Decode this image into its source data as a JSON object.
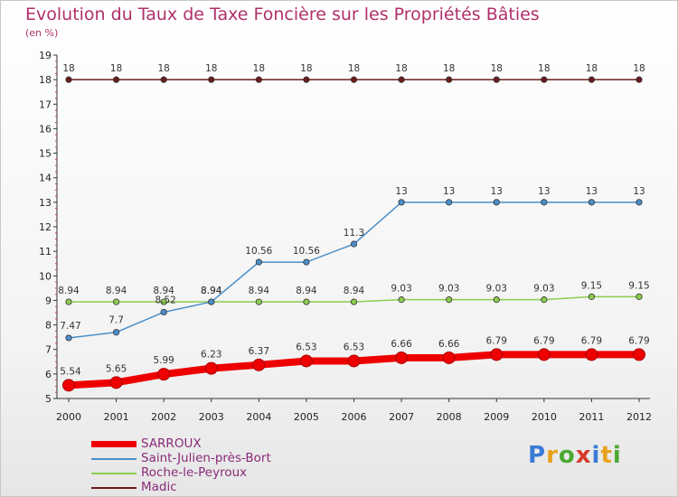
{
  "title": "Evolution du Taux de Taxe Foncière sur les Propriétés Bâties",
  "unit_label": "(en %)",
  "logo": {
    "text": "Proxiti",
    "letter_colors": [
      "#3a7bd5",
      "#e8a21e",
      "#4aa832",
      "#d63b2c",
      "#3a7bd5",
      "#e8a21e",
      "#4aa832"
    ]
  },
  "chart_data": {
    "type": "line",
    "x": [
      "2000",
      "2001",
      "2002",
      "2003",
      "2004",
      "2005",
      "2006",
      "2007",
      "2008",
      "2009",
      "2010",
      "2011",
      "2012"
    ],
    "ylim": [
      5,
      19
    ],
    "yticks": [
      5,
      6,
      7,
      8,
      9,
      10,
      11,
      12,
      13,
      14,
      15,
      16,
      17,
      18,
      19
    ],
    "ytick_labels": [
      "5",
      "6",
      "7",
      "8",
      "9",
      "10",
      "11",
      "12",
      "13",
      "14",
      "15",
      "16",
      "17",
      "18",
      "19"
    ],
    "grid": false,
    "legend_position": "bottom-left",
    "series": [
      {
        "name": "SARROUX",
        "color": "#ee0000",
        "values": [
          5.54,
          5.65,
          5.99,
          6.23,
          6.37,
          6.53,
          6.53,
          6.66,
          6.66,
          6.79,
          6.79,
          6.79,
          6.79
        ],
        "labels": [
          "5.54",
          "5.65",
          "5.99",
          "6.23",
          "6.37",
          "6.53",
          "6.53",
          "6.66",
          "6.66",
          "6.79",
          "6.79",
          "6.79",
          "6.79"
        ]
      },
      {
        "name": "Saint-Julien-près-Bort",
        "color": "#4a8ec8",
        "values": [
          7.47,
          7.7,
          8.52,
          8.94,
          10.56,
          10.56,
          11.3,
          13,
          13,
          13,
          13,
          13,
          13
        ],
        "labels": [
          "7.47",
          "7.7",
          "8.52",
          "8.94",
          "10.56",
          "10.56",
          "11.3",
          "13",
          "13",
          "13",
          "13",
          "13",
          "13"
        ]
      },
      {
        "name": "Roche-le-Peyroux",
        "color": "#8ccc4e",
        "values": [
          8.94,
          8.94,
          8.94,
          8.94,
          8.94,
          8.94,
          8.94,
          9.03,
          9.03,
          9.03,
          9.03,
          9.15,
          9.15
        ],
        "labels": [
          "8.94",
          "8.94",
          "8.94",
          "8.94",
          "8.94",
          "8.94",
          "8.94",
          "9.03",
          "9.03",
          "9.03",
          "9.03",
          "9.15",
          "9.15"
        ]
      },
      {
        "name": "Madic",
        "color": "#6b1c1c",
        "values": [
          18,
          18,
          18,
          18,
          18,
          18,
          18,
          18,
          18,
          18,
          18,
          18,
          18
        ],
        "labels": [
          "18",
          "18",
          "18",
          "18",
          "18",
          "18",
          "18",
          "18",
          "18",
          "18",
          "18",
          "18",
          "18"
        ]
      }
    ]
  }
}
